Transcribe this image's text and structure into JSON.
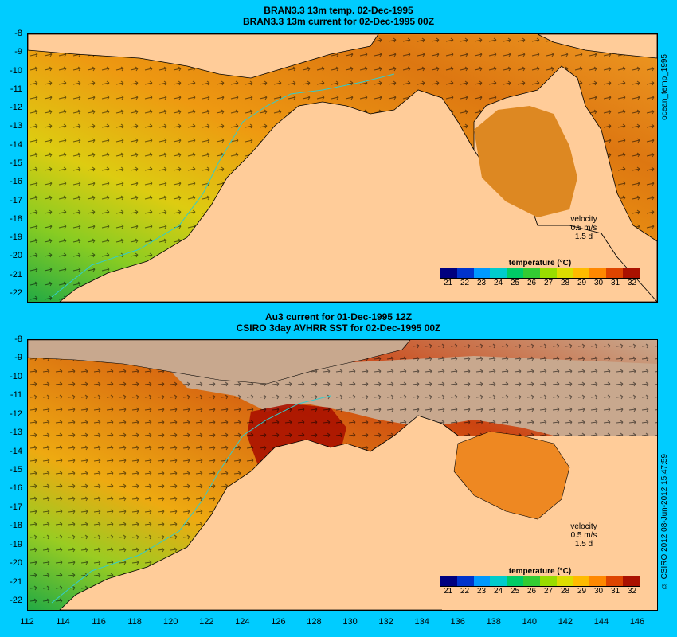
{
  "panels": [
    {
      "title_line1": "BRAN3.3 13m temp. 02-Dec-1995",
      "title_line2": "BRAN3.3 13m current for 02-Dec-1995 00Z"
    },
    {
      "title_line1": "Au3 current for 01-Dec-1995 12Z",
      "title_line2": "CSIRO 3day AVHRR SST for 02-Dec-1995 00Z"
    }
  ],
  "y_ticks": [
    "-8",
    "-9",
    "-10",
    "-11",
    "-12",
    "-13",
    "-14",
    "-15",
    "-16",
    "-17",
    "-18",
    "-19",
    "-20",
    "-21",
    "-22"
  ],
  "x_ticks": [
    "112",
    "114",
    "116",
    "118",
    "120",
    "122",
    "124",
    "126",
    "128",
    "130",
    "132",
    "134",
    "136",
    "138",
    "140",
    "142",
    "144",
    "146"
  ],
  "legend": {
    "title": "temperature (°C)",
    "ticks": [
      "21",
      "22",
      "23",
      "24",
      "25",
      "26",
      "27",
      "28",
      "29",
      "30",
      "31",
      "32"
    ],
    "colors": [
      "#00007f",
      "#0033cc",
      "#0099ff",
      "#00cccc",
      "#00cc66",
      "#33cc33",
      "#99dd00",
      "#dddd00",
      "#ffbb00",
      "#ff8800",
      "#dd4400",
      "#aa1100"
    ]
  },
  "velocity": {
    "label": "velocity",
    "speed": "0.5 m/s",
    "period": "1.5 d"
  },
  "side_labels": {
    "top": "ocean_temp_1995",
    "bottom": "© CSIRO 2012  08-Jun-2012 15:47:59"
  },
  "colors": {
    "background": "#00ccff",
    "land": "#ffcc99",
    "no_data": "#c8a88e",
    "coast_line": "#000000",
    "isobath": "#33cccc"
  }
}
